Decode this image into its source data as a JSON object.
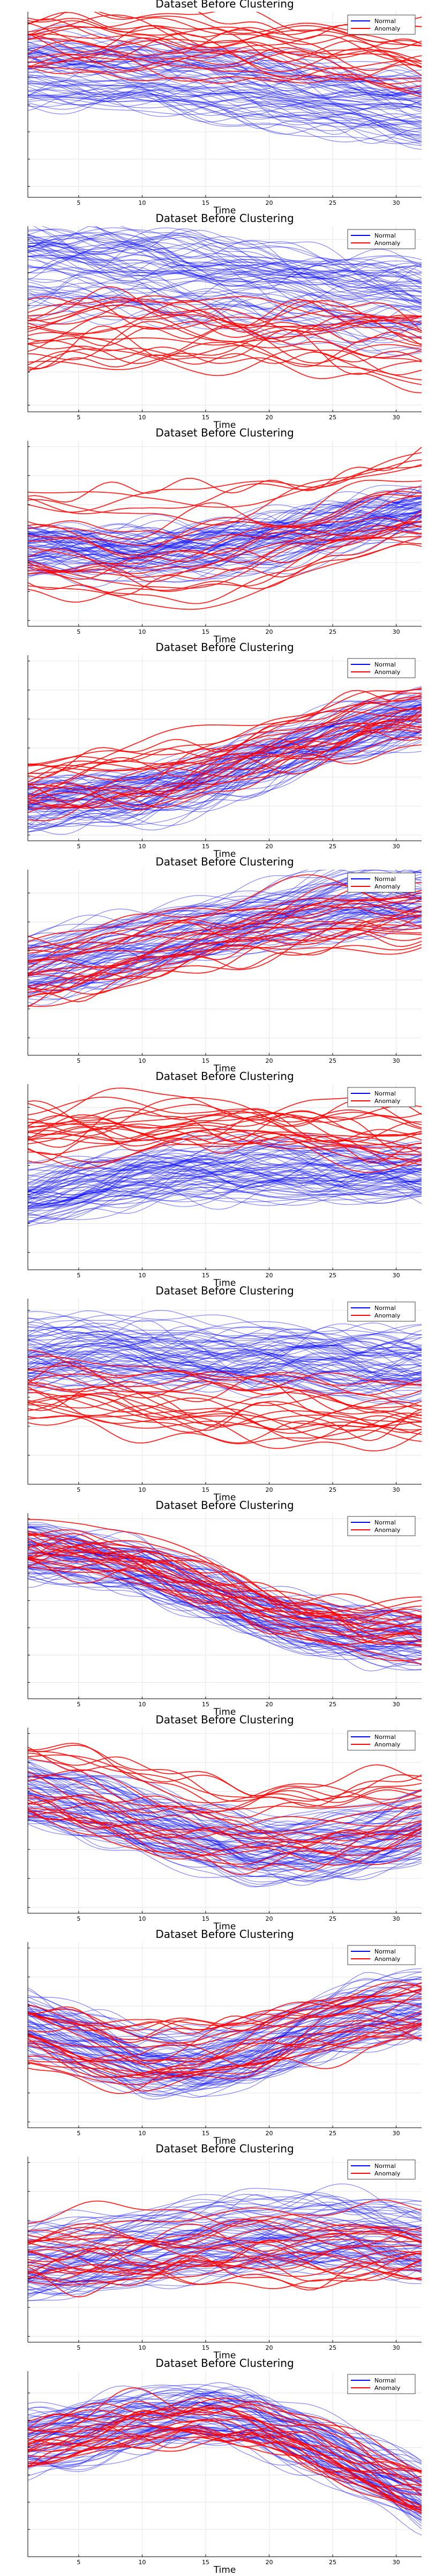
{
  "colors": {
    "normal": "#0000ff",
    "anomaly": "#ff0000",
    "axis": "#000000",
    "grid": "#e6e6e6",
    "legend_border": "#444444"
  },
  "chart_data": [
    {
      "type": "line",
      "title": "Dataset Before Clustering",
      "xlabel": "Time",
      "xticks": [
        5,
        10,
        15,
        20,
        25,
        30
      ],
      "xlim": [
        1,
        32
      ],
      "ylim": [
        -2.2,
        1.2
      ],
      "grid": true,
      "legend_position": "top-right",
      "legend": [
        "Normal",
        "Anomaly"
      ],
      "series": [
        {
          "name": "Normal",
          "profile": [
            0.1,
            0.05,
            0,
            -0.1,
            -0.2,
            -0.35,
            -0.5,
            -0.62
          ],
          "spread": 0.35
        },
        {
          "name": "Anomaly",
          "profile": [
            0.7,
            0.68,
            0.65,
            0.6,
            0.55,
            0.45,
            0.35,
            0.25
          ],
          "spread": 0.35
        }
      ]
    },
    {
      "type": "line",
      "title": "Dataset Before Clustering",
      "xlabel": "Time",
      "xticks": [
        5,
        10,
        15,
        20,
        25,
        30
      ],
      "xlim": [
        1,
        32
      ],
      "ylim": [
        -1.6,
        1.2
      ],
      "grid": true,
      "legend_position": "top-right",
      "legend": [
        "Normal",
        "Anomaly"
      ],
      "series": [
        {
          "name": "Normal",
          "profile": [
            0.6,
            0.55,
            0.5,
            0.4,
            0.3,
            0.2,
            0.1,
            0.0
          ],
          "spread": 0.35
        },
        {
          "name": "Anomaly",
          "profile": [
            -0.5,
            -0.45,
            -0.4,
            -0.4,
            -0.45,
            -0.5,
            -0.55,
            -0.6
          ],
          "spread": 0.3
        }
      ]
    },
    {
      "type": "line",
      "title": "Dataset Before Clustering",
      "xlabel": "Time",
      "xticks": [
        5,
        10,
        15,
        20,
        25,
        30
      ],
      "xlim": [
        1,
        32
      ],
      "ylim": [
        -1.6,
        1.6
      ],
      "grid": true,
      "legend_position": "none",
      "legend": [],
      "series": [
        {
          "name": "Normal",
          "profile": [
            -0.3,
            -0.35,
            -0.35,
            -0.3,
            -0.2,
            0.0,
            0.2,
            0.35
          ],
          "spread": 0.25
        },
        {
          "name": "Anomaly",
          "profile": [
            -0.2,
            -0.2,
            -0.25,
            -0.15,
            0.0,
            0.2,
            0.4,
            0.55
          ],
          "spread": 0.55
        }
      ]
    },
    {
      "type": "line",
      "title": "Dataset Before Clustering",
      "xlabel": "Time",
      "xticks": [
        5,
        10,
        15,
        20,
        25,
        30
      ],
      "xlim": [
        1,
        32
      ],
      "ylim": [
        -1.6,
        1.6
      ],
      "grid": true,
      "legend_position": "top-right",
      "legend": [
        "Normal",
        "Anomaly"
      ],
      "series": [
        {
          "name": "Normal",
          "profile": [
            -1.0,
            -0.95,
            -0.85,
            -0.6,
            -0.3,
            0.0,
            0.3,
            0.55
          ],
          "spread": 0.25
        },
        {
          "name": "Anomaly",
          "profile": [
            -0.7,
            -0.6,
            -0.5,
            -0.3,
            -0.1,
            0.15,
            0.4,
            0.6
          ],
          "spread": 0.3
        }
      ]
    },
    {
      "type": "line",
      "title": "Dataset Before Clustering",
      "xlabel": "Time",
      "xticks": [
        5,
        10,
        15,
        20,
        25,
        30
      ],
      "xlim": [
        1,
        32
      ],
      "ylim": [
        -1.8,
        1.4
      ],
      "grid": true,
      "legend_position": "top-right",
      "legend": [
        "Normal",
        "Anomaly"
      ],
      "series": [
        {
          "name": "Normal",
          "profile": [
            -0.3,
            -0.1,
            0.1,
            0.35,
            0.55,
            0.75,
            0.9,
            0.95
          ],
          "spread": 0.3
        },
        {
          "name": "Anomaly",
          "profile": [
            -0.4,
            -0.2,
            0.0,
            0.2,
            0.35,
            0.5,
            0.6,
            0.65
          ],
          "spread": 0.3
        }
      ]
    },
    {
      "type": "line",
      "title": "Dataset Before Clustering",
      "xlabel": "Time",
      "xticks": [
        5,
        10,
        15,
        20,
        25,
        30
      ],
      "xlim": [
        1,
        32
      ],
      "ylim": [
        -1.8,
        1.4
      ],
      "grid": true,
      "legend_position": "top-right",
      "legend": [
        "Normal",
        "Anomaly"
      ],
      "series": [
        {
          "name": "Normal",
          "profile": [
            -0.5,
            -0.3,
            -0.15,
            -0.05,
            0.0,
            -0.05,
            -0.1,
            -0.1
          ],
          "spread": 0.3
        },
        {
          "name": "Anomaly",
          "profile": [
            0.55,
            0.6,
            0.7,
            0.75,
            0.7,
            0.65,
            0.55,
            0.5
          ],
          "spread": 0.25
        }
      ]
    },
    {
      "type": "line",
      "title": "Dataset Before Clustering",
      "xlabel": "Time",
      "xticks": [
        5,
        10,
        15,
        20,
        25,
        30
      ],
      "xlim": [
        1,
        32
      ],
      "ylim": [
        -2.0,
        1.2
      ],
      "grid": true,
      "legend_position": "top-right",
      "legend": [
        "Normal",
        "Anomaly"
      ],
      "series": [
        {
          "name": "Normal",
          "profile": [
            0.25,
            0.3,
            0.25,
            0.2,
            0.15,
            0.15,
            0.1,
            0.1
          ],
          "spread": 0.3
        },
        {
          "name": "Anomaly",
          "profile": [
            -0.3,
            -0.4,
            -0.5,
            -0.6,
            -0.65,
            -0.7,
            -0.75,
            -0.7
          ],
          "spread": 0.35
        }
      ]
    },
    {
      "type": "line",
      "title": "Dataset Before Clustering",
      "xlabel": "Time",
      "xticks": [
        5,
        10,
        15,
        20,
        25,
        30
      ],
      "xlim": [
        1,
        32
      ],
      "ylim": [
        -1.8,
        1.6
      ],
      "grid": true,
      "legend_position": "top-right",
      "legend": [
        "Normal",
        "Anomaly"
      ],
      "series": [
        {
          "name": "Normal",
          "profile": [
            0.9,
            0.8,
            0.55,
            0.2,
            -0.2,
            -0.5,
            -0.65,
            -0.7
          ],
          "spread": 0.25
        },
        {
          "name": "Anomaly",
          "profile": [
            1.0,
            0.9,
            0.7,
            0.4,
            0.05,
            -0.25,
            -0.45,
            -0.5
          ],
          "spread": 0.25
        }
      ]
    },
    {
      "type": "line",
      "title": "Dataset Before Clustering",
      "xlabel": "Time",
      "xticks": [
        5,
        10,
        15,
        20,
        25,
        30
      ],
      "xlim": [
        1,
        32
      ],
      "ylim": [
        -1.6,
        1.6
      ],
      "grid": true,
      "legend_position": "top-right",
      "legend": [
        "Normal",
        "Anomaly"
      ],
      "series": [
        {
          "name": "Normal",
          "profile": [
            0.5,
            0.3,
            0.05,
            -0.25,
            -0.45,
            -0.45,
            -0.3,
            -0.1
          ],
          "spread": 0.3
        },
        {
          "name": "Anomaly",
          "profile": [
            0.6,
            0.4,
            0.2,
            0.0,
            -0.15,
            -0.1,
            0.05,
            0.2
          ],
          "spread": 0.4
        }
      ]
    },
    {
      "type": "line",
      "title": "Dataset Before Clustering",
      "xlabel": "Time",
      "xticks": [
        5,
        10,
        15,
        20,
        25,
        30
      ],
      "xlim": [
        1,
        32
      ],
      "ylim": [
        -1.6,
        1.6
      ],
      "grid": true,
      "legend_position": "top-right",
      "legend": [
        "Normal",
        "Anomaly"
      ],
      "series": [
        {
          "name": "Normal",
          "profile": [
            0.2,
            -0.1,
            -0.4,
            -0.5,
            -0.3,
            0.1,
            0.4,
            0.5
          ],
          "spread": 0.3
        },
        {
          "name": "Anomaly",
          "profile": [
            0.0,
            -0.2,
            -0.4,
            -0.35,
            -0.15,
            0.1,
            0.3,
            0.4
          ],
          "spread": 0.35
        }
      ]
    },
    {
      "type": "line",
      "title": "Dataset Before Clustering",
      "xlabel": "Time",
      "xticks": [
        5,
        10,
        15,
        20,
        25,
        30
      ],
      "xlim": [
        1,
        32
      ],
      "ylim": [
        -1.6,
        1.6
      ],
      "grid": true,
      "legend_position": "top-right",
      "legend": [
        "Normal",
        "Anomaly"
      ],
      "series": [
        {
          "name": "Normal",
          "profile": [
            -0.2,
            -0.1,
            0.05,
            0.2,
            0.3,
            0.35,
            0.3,
            0.15
          ],
          "spread": 0.35
        },
        {
          "name": "Anomaly",
          "profile": [
            0.0,
            0.05,
            0.1,
            0.1,
            0.15,
            0.15,
            0.1,
            0.05
          ],
          "spread": 0.4
        }
      ]
    },
    {
      "type": "line",
      "title": "Dataset Before Clustering",
      "xlabel": "Time",
      "xticks": [
        5,
        10,
        15,
        20,
        25,
        30
      ],
      "xlim": [
        1,
        32
      ],
      "ylim": [
        -2.0,
        1.4
      ],
      "grid": true,
      "legend_position": "top-right",
      "legend": [
        "Normal",
        "Anomaly"
      ],
      "series": [
        {
          "name": "Normal",
          "profile": [
            0.1,
            0.3,
            0.5,
            0.6,
            0.5,
            0.1,
            -0.4,
            -0.9
          ],
          "spread": 0.3
        },
        {
          "name": "Anomaly",
          "profile": [
            0.0,
            0.2,
            0.35,
            0.45,
            0.35,
            0.0,
            -0.4,
            -0.8
          ],
          "spread": 0.3
        }
      ]
    }
  ]
}
